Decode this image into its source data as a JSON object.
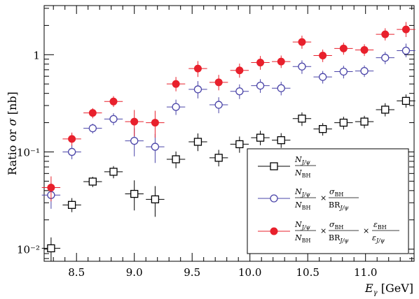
{
  "chart_data": {
    "type": "scatter",
    "xlabel": "E_γ [GeV]",
    "ylabel": "Ratio or σ [nb]",
    "xlim": [
      8.22,
      11.42
    ],
    "ylim": [
      0.0075,
      3.2
    ],
    "y_scale": "log",
    "x_ticks": [
      "8.5",
      "9.0",
      "9.5",
      "10.0",
      "10.5",
      "11.0"
    ],
    "y_ticks": [
      {
        "value": 0.01,
        "label": "10⁻²"
      },
      {
        "value": 0.1,
        "label": "10⁻¹"
      },
      {
        "value": 1,
        "label": "1"
      }
    ],
    "x_halfwidth": 0.08,
    "legend_position": "bottom-right",
    "series": [
      {
        "name": "N_{J/ψ} / N_BH",
        "marker": "open-square",
        "color": "#000000",
        "x": [
          8.28,
          8.46,
          8.64,
          8.82,
          9.0,
          9.18,
          9.36,
          9.55,
          9.73,
          9.91,
          10.09,
          10.27,
          10.45,
          10.63,
          10.81,
          10.99,
          11.17,
          11.35
        ],
        "y": [
          0.0102,
          0.0285,
          0.0495,
          0.0625,
          0.037,
          0.0325,
          0.084,
          0.127,
          0.087,
          0.12,
          0.14,
          0.132,
          0.22,
          0.172,
          0.2,
          0.205,
          0.272,
          0.335
        ],
        "err_lo": [
          0.0027,
          0.0045,
          0.006,
          0.009,
          0.012,
          0.011,
          0.016,
          0.025,
          0.016,
          0.022,
          0.023,
          0.022,
          0.035,
          0.025,
          0.03,
          0.03,
          0.04,
          0.05
        ],
        "err_hi": [
          0.003,
          0.005,
          0.006,
          0.009,
          0.014,
          0.012,
          0.017,
          0.028,
          0.018,
          0.024,
          0.025,
          0.024,
          0.035,
          0.026,
          0.03,
          0.03,
          0.045,
          0.055
        ]
      },
      {
        "name": "N_{J/ψ} / N_BH × σ_BH / BR_{J/ψ}",
        "marker": "open-circle",
        "color": "#4a44a8",
        "x": [
          8.28,
          8.46,
          8.64,
          8.82,
          9.0,
          9.18,
          9.36,
          9.55,
          9.73,
          9.91,
          10.09,
          10.27,
          10.45,
          10.63,
          10.81,
          10.99,
          11.17,
          11.35
        ],
        "y": [
          0.036,
          0.1,
          0.175,
          0.218,
          0.13,
          0.113,
          0.29,
          0.44,
          0.305,
          0.42,
          0.48,
          0.452,
          0.755,
          0.59,
          0.67,
          0.68,
          0.93,
          1.1
        ],
        "err_lo": [
          0.01,
          0.016,
          0.02,
          0.03,
          0.04,
          0.036,
          0.05,
          0.085,
          0.055,
          0.07,
          0.075,
          0.07,
          0.12,
          0.085,
          0.1,
          0.09,
          0.13,
          0.16
        ],
        "err_hi": [
          0.012,
          0.018,
          0.02,
          0.032,
          0.045,
          0.04,
          0.055,
          0.095,
          0.06,
          0.075,
          0.08,
          0.075,
          0.12,
          0.09,
          0.1,
          0.095,
          0.14,
          0.2
        ]
      },
      {
        "name": "N_{J/ψ} / N_BH × σ_BH / BR_{J/ψ} × ε_BH / ε_{J/ψ}",
        "marker": "filled-circle",
        "color": "#e8202c",
        "x": [
          8.28,
          8.46,
          8.64,
          8.82,
          9.0,
          9.18,
          9.36,
          9.55,
          9.73,
          9.91,
          10.09,
          10.27,
          10.45,
          10.63,
          10.81,
          10.99,
          11.17,
          11.35
        ],
        "y": [
          0.043,
          0.136,
          0.252,
          0.33,
          0.205,
          0.2,
          0.5,
          0.72,
          0.52,
          0.69,
          0.83,
          0.85,
          1.35,
          0.98,
          1.16,
          1.12,
          1.62,
          1.82
        ],
        "err_lo": [
          0.012,
          0.02,
          0.03,
          0.04,
          0.06,
          0.06,
          0.08,
          0.13,
          0.09,
          0.11,
          0.13,
          0.12,
          0.2,
          0.14,
          0.16,
          0.15,
          0.22,
          0.3
        ],
        "err_hi": [
          0.013,
          0.022,
          0.03,
          0.045,
          0.065,
          0.065,
          0.09,
          0.14,
          0.1,
          0.12,
          0.14,
          0.13,
          0.22,
          0.15,
          0.17,
          0.16,
          0.25,
          0.35
        ]
      }
    ]
  }
}
